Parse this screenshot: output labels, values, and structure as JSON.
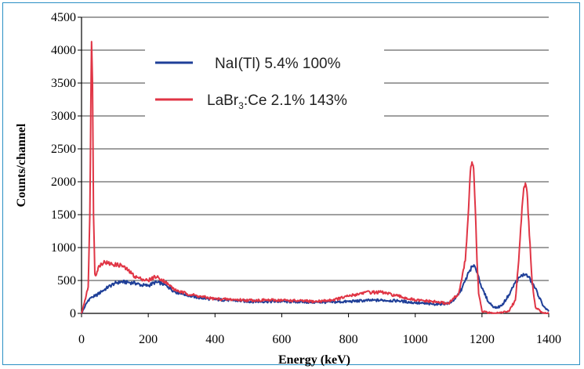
{
  "chart_data": {
    "type": "line",
    "title": "",
    "xlabel": "Energy (keV)",
    "ylabel": "Counts/channel",
    "xlim": [
      0,
      1400
    ],
    "ylim": [
      0,
      4500
    ],
    "x_ticks": [
      0,
      200,
      400,
      600,
      800,
      1000,
      1200,
      1400
    ],
    "y_ticks": [
      0,
      500,
      1000,
      1500,
      2000,
      2500,
      3000,
      3500,
      4000,
      4500
    ],
    "grid": "horizontal",
    "legend_position": "top-center",
    "series": [
      {
        "name": "NaI(Tl) 5.4% 100%",
        "label_main": "NaI(Tl) 5.4% 100%",
        "color": "#1f3f98",
        "x": [
          0,
          10,
          20,
          30,
          40,
          60,
          80,
          100,
          120,
          140,
          160,
          180,
          200,
          220,
          240,
          260,
          280,
          300,
          350,
          400,
          450,
          500,
          550,
          600,
          650,
          700,
          750,
          800,
          850,
          900,
          950,
          1000,
          1050,
          1100,
          1120,
          1140,
          1150,
          1160,
          1170,
          1180,
          1190,
          1200,
          1220,
          1240,
          1260,
          1280,
          1300,
          1320,
          1330,
          1340,
          1360,
          1380,
          1390,
          1400
        ],
        "y": [
          0,
          100,
          200,
          250,
          260,
          330,
          400,
          460,
          480,
          470,
          460,
          430,
          420,
          470,
          460,
          400,
          330,
          300,
          240,
          210,
          200,
          180,
          180,
          180,
          175,
          170,
          170,
          180,
          195,
          200,
          190,
          160,
          140,
          150,
          220,
          380,
          500,
          620,
          710,
          700,
          560,
          380,
          170,
          80,
          120,
          280,
          470,
          580,
          590,
          550,
          380,
          150,
          80,
          30
        ]
      },
      {
        "name": "LaBr3:Ce 2.1% 143%",
        "label_main": "LaBr",
        "label_sub": "3",
        "label_rest": ":Ce 2.1% 143%",
        "color": "#e03545",
        "x": [
          0,
          10,
          20,
          25,
          28,
          30,
          33,
          36,
          40,
          45,
          50,
          60,
          70,
          80,
          100,
          120,
          140,
          160,
          180,
          200,
          220,
          240,
          260,
          280,
          300,
          350,
          400,
          450,
          500,
          550,
          600,
          650,
          700,
          750,
          800,
          850,
          900,
          950,
          1000,
          1050,
          1100,
          1130,
          1150,
          1160,
          1165,
          1170,
          1175,
          1180,
          1185,
          1190,
          1200,
          1220,
          1250,
          1280,
          1300,
          1310,
          1320,
          1325,
          1330,
          1335,
          1340,
          1350,
          1360,
          1380,
          1400
        ],
        "y": [
          0,
          200,
          400,
          1500,
          3200,
          4130,
          3500,
          1500,
          600,
          600,
          700,
          760,
          780,
          760,
          740,
          730,
          650,
          560,
          520,
          500,
          560,
          520,
          440,
          360,
          320,
          260,
          220,
          210,
          200,
          200,
          200,
          190,
          180,
          200,
          260,
          320,
          320,
          260,
          200,
          180,
          150,
          300,
          800,
          1600,
          2150,
          2300,
          2200,
          1600,
          800,
          300,
          30,
          10,
          10,
          30,
          200,
          800,
          1600,
          1900,
          1980,
          1850,
          1400,
          500,
          100,
          10,
          0
        ]
      }
    ]
  }
}
